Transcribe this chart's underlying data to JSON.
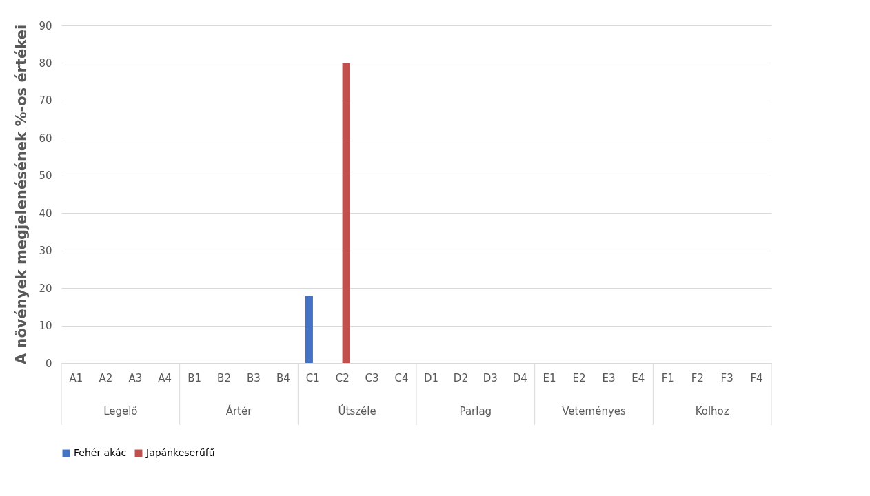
{
  "chart_data": {
    "type": "bar",
    "ylabel": "A növények megjelenésének %-os értékei",
    "categories": [
      "A1",
      "A2",
      "A3",
      "A4",
      "B1",
      "B2",
      "B3",
      "B4",
      "C1",
      "C2",
      "C3",
      "C4",
      "D1",
      "D2",
      "D3",
      "D4",
      "E1",
      "E2",
      "E3",
      "E4",
      "F1",
      "F2",
      "F3",
      "F4"
    ],
    "series": [
      {
        "name": "Fehér akác",
        "color": "#4472c4",
        "values": [
          0,
          0,
          0,
          0,
          0,
          0,
          0,
          0,
          18,
          0,
          0,
          0,
          0,
          0,
          0,
          0,
          0,
          0,
          0,
          0,
          0,
          0,
          0,
          0
        ]
      },
      {
        "name": "Japánkeserűfű",
        "color": "#c0504d",
        "values": [
          0,
          0,
          0,
          0,
          0,
          0,
          0,
          0,
          0,
          80,
          0,
          0,
          0,
          0,
          0,
          0,
          0,
          0,
          0,
          0,
          0,
          0,
          0,
          0
        ]
      }
    ],
    "annotations": [
      "Legelő",
      "Ártér",
      "Útszéle",
      "Parlag",
      "Veteményes",
      "Kolhoz"
    ],
    "ylim": [
      0,
      90
    ],
    "yticks": [
      0,
      10,
      20,
      30,
      40,
      50,
      60,
      70,
      80,
      90
    ],
    "grid": "y",
    "legend": "bottom"
  }
}
